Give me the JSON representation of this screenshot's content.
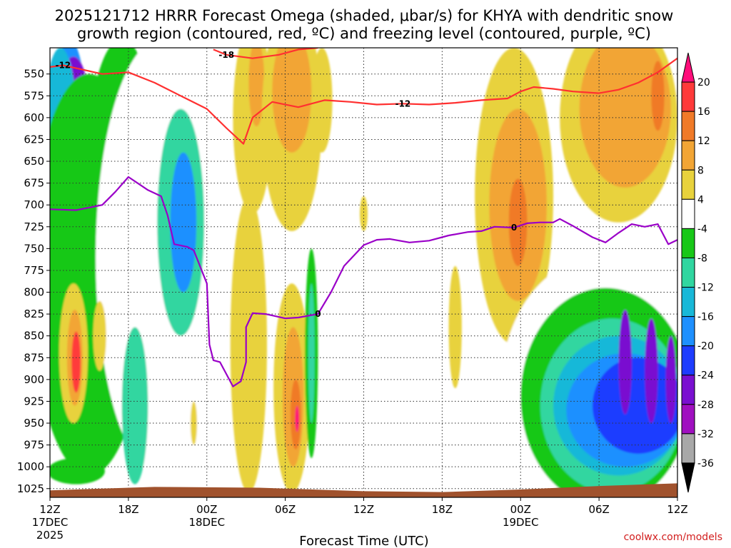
{
  "title_line1": "2025121712 HRRR Forecast Omega (shaded, μbar/s) for KHYA with dendritic snow",
  "title_line2": "growth region (contoured, red, ºC) and freezing level (contoured, purple, ºC)",
  "watermark": "coolwx.com/models",
  "chart_data": {
    "type": "heatmap",
    "title": "2025121712 HRRR Forecast Omega (shaded, μbar/s) for KHYA with dendritic snow growth region (contoured, red, ºC) and freezing level (contoured, purple, ºC)",
    "xlabel": "Forecast Time (UTC)",
    "ylabel": "",
    "x_range_hours": [
      0,
      48
    ],
    "y_range_hpa": [
      1035,
      520
    ],
    "y_ticks": [
      550,
      575,
      600,
      625,
      650,
      675,
      700,
      725,
      750,
      775,
      800,
      825,
      850,
      875,
      900,
      925,
      950,
      975,
      1000,
      1025
    ],
    "x_ticks": [
      {
        "hour": 0,
        "label": "12Z",
        "sub1": "17DEC",
        "sub2": "2025"
      },
      {
        "hour": 6,
        "label": "18Z",
        "sub1": "",
        "sub2": ""
      },
      {
        "hour": 12,
        "label": "00Z",
        "sub1": "18DEC",
        "sub2": ""
      },
      {
        "hour": 18,
        "label": "06Z",
        "sub1": "",
        "sub2": ""
      },
      {
        "hour": 24,
        "label": "12Z",
        "sub1": "",
        "sub2": ""
      },
      {
        "hour": 30,
        "label": "18Z",
        "sub1": "",
        "sub2": ""
      },
      {
        "hour": 36,
        "label": "00Z",
        "sub1": "19DEC",
        "sub2": ""
      },
      {
        "hour": 42,
        "label": "06Z",
        "sub1": "",
        "sub2": ""
      },
      {
        "hour": 48,
        "label": "12Z",
        "sub1": "",
        "sub2": ""
      }
    ],
    "colorbar": {
      "labels": [
        20,
        16,
        12,
        8,
        4,
        -4,
        -8,
        -12,
        -16,
        -20,
        -24,
        -28,
        -32,
        -36
      ],
      "colors": [
        "#ff0d7a",
        "#ff3a3a",
        "#f07a28",
        "#f2a535",
        "#e8d23c",
        "#ffffff",
        "#18c818",
        "#30d6a0",
        "#18b8d8",
        "#1e90ff",
        "#1e3cff",
        "#7a10d0",
        "#a010c0",
        "#a8a8a8",
        "#000000"
      ]
    },
    "omega_blobs": [
      {
        "cx": 1.5,
        "cp": 630,
        "rx": 1.4,
        "rp": 120,
        "value": -20
      },
      {
        "cx": 1.8,
        "cp": 590,
        "rx": 1.2,
        "rp": 60,
        "value": -28
      },
      {
        "cx": 0.8,
        "cp": 600,
        "rx": 1.2,
        "rp": 80,
        "value": -16
      },
      {
        "cx": 3.0,
        "cp": 780,
        "rx": 4.5,
        "rp": 230,
        "value": -8
      },
      {
        "cx": 5.5,
        "cp": 640,
        "rx": 2.5,
        "rp": 130,
        "value": -8
      },
      {
        "cx": 8.5,
        "cp": 760,
        "rx": 5.0,
        "rp": 250,
        "value": -4
      },
      {
        "cx": 10.0,
        "cp": 720,
        "rx": 1.8,
        "rp": 130,
        "value": -12
      },
      {
        "cx": 10.2,
        "cp": 720,
        "rx": 1.0,
        "rp": 80,
        "value": -20
      },
      {
        "cx": 6.5,
        "cp": 930,
        "rx": 1.0,
        "rp": 90,
        "value": -12
      },
      {
        "cx": 2.0,
        "cp": 1005,
        "rx": 2.2,
        "rp": 15,
        "value": -8
      },
      {
        "cx": 1.8,
        "cp": 870,
        "rx": 1.1,
        "rp": 80,
        "value": 4
      },
      {
        "cx": 1.9,
        "cp": 875,
        "rx": 0.6,
        "rp": 55,
        "value": 8
      },
      {
        "cx": 2.0,
        "cp": 880,
        "rx": 0.35,
        "rp": 35,
        "value": 16
      },
      {
        "cx": 3.8,
        "cp": 850,
        "rx": 0.5,
        "rp": 40,
        "value": 4
      },
      {
        "cx": 11.0,
        "cp": 950,
        "rx": 0.25,
        "rp": 25,
        "value": 4
      },
      {
        "cx": 15.5,
        "cp": 600,
        "rx": 1.5,
        "rp": 110,
        "value": 4
      },
      {
        "cx": 15.8,
        "cp": 560,
        "rx": 0.6,
        "rp": 50,
        "value": 8
      },
      {
        "cx": 15.2,
        "cp": 860,
        "rx": 1.4,
        "rp": 170,
        "value": 4
      },
      {
        "cx": 18.5,
        "cp": 600,
        "rx": 2.3,
        "rp": 130,
        "value": 4
      },
      {
        "cx": 18.5,
        "cp": 570,
        "rx": 1.5,
        "rp": 70,
        "value": 8
      },
      {
        "cx": 18.5,
        "cp": 910,
        "rx": 1.4,
        "rp": 120,
        "value": 4
      },
      {
        "cx": 18.6,
        "cp": 920,
        "rx": 0.8,
        "rp": 80,
        "value": 8
      },
      {
        "cx": 18.8,
        "cp": 940,
        "rx": 0.4,
        "rp": 40,
        "value": 12
      },
      {
        "cx": 18.9,
        "cp": 945,
        "rx": 0.15,
        "rp": 15,
        "value": 20
      },
      {
        "cx": 20.0,
        "cp": 870,
        "rx": 0.5,
        "rp": 120,
        "value": -8
      },
      {
        "cx": 20.0,
        "cp": 870,
        "rx": 0.25,
        "rp": 80,
        "value": -12
      },
      {
        "cx": 20.8,
        "cp": 580,
        "rx": 0.8,
        "rp": 60,
        "value": 4
      },
      {
        "cx": 24.0,
        "cp": 710,
        "rx": 0.3,
        "rp": 20,
        "value": 4
      },
      {
        "cx": 31.0,
        "cp": 840,
        "rx": 0.5,
        "rp": 70,
        "value": 4
      },
      {
        "cx": 35.5,
        "cp": 690,
        "rx": 3.0,
        "rp": 170,
        "value": 4
      },
      {
        "cx": 35.8,
        "cp": 700,
        "rx": 2.2,
        "rp": 110,
        "value": 8
      },
      {
        "cx": 35.8,
        "cp": 720,
        "rx": 0.7,
        "rp": 50,
        "value": 12
      },
      {
        "cx": 43.5,
        "cp": 600,
        "rx": 4.5,
        "rp": 120,
        "value": 4
      },
      {
        "cx": 44.0,
        "cp": 590,
        "rx": 3.5,
        "rp": 90,
        "value": 8
      },
      {
        "cx": 46.5,
        "cp": 575,
        "rx": 0.5,
        "rp": 40,
        "value": 12
      },
      {
        "cx": 42.0,
        "cp": 910,
        "rx": 7.5,
        "rp": 150,
        "value": -4
      },
      {
        "cx": 42.5,
        "cp": 920,
        "rx": 6.5,
        "rp": 125,
        "value": -8
      },
      {
        "cx": 43.0,
        "cp": 930,
        "rx": 5.5,
        "rp": 100,
        "value": -12
      },
      {
        "cx": 43.5,
        "cp": 930,
        "rx": 5.0,
        "rp": 80,
        "value": -16
      },
      {
        "cx": 44.0,
        "cp": 935,
        "rx": 4.5,
        "rp": 65,
        "value": -20
      },
      {
        "cx": 45.0,
        "cp": 930,
        "rx": 3.5,
        "rp": 55,
        "value": -24
      },
      {
        "cx": 44.0,
        "cp": 880,
        "rx": 0.5,
        "rp": 60,
        "value": -28
      },
      {
        "cx": 46.0,
        "cp": 890,
        "rx": 0.5,
        "rp": 60,
        "value": -28
      },
      {
        "cx": 47.5,
        "cp": 900,
        "rx": 0.4,
        "rp": 50,
        "value": -28
      }
    ],
    "dgz_contour_minus12_upper": {
      "label": "-12",
      "points": [
        [
          0,
          542
        ],
        [
          1.0,
          540
        ],
        [
          2.5,
          545
        ],
        [
          4.0,
          550
        ],
        [
          6.0,
          548
        ],
        [
          8.0,
          560
        ],
        [
          10.0,
          575
        ],
        [
          12.0,
          590
        ],
        [
          13.5,
          612
        ],
        [
          14.8,
          630
        ],
        [
          15.5,
          600
        ],
        [
          17.0,
          582
        ],
        [
          19.0,
          588
        ],
        [
          21.0,
          580
        ],
        [
          23.0,
          582
        ],
        [
          25.0,
          585
        ],
        [
          27.0,
          584
        ],
        [
          29.0,
          585
        ],
        [
          31.0,
          583
        ],
        [
          33.0,
          580
        ],
        [
          35.0,
          578
        ],
        [
          36.0,
          570
        ],
        [
          37.0,
          565
        ],
        [
          38.5,
          567
        ],
        [
          40.0,
          570
        ],
        [
          42.0,
          572
        ],
        [
          43.5,
          568
        ],
        [
          45.0,
          560
        ],
        [
          46.5,
          548
        ],
        [
          48.0,
          532
        ]
      ]
    },
    "dgz_contour_minus18": {
      "label": "-18",
      "points": [
        [
          12.5,
          522
        ],
        [
          13.5,
          528
        ],
        [
          15.5,
          532
        ],
        [
          17.5,
          528
        ],
        [
          19.0,
          522
        ],
        [
          20.5,
          520
        ]
      ]
    },
    "freezing_level": {
      "label": "0",
      "points": [
        [
          0,
          705
        ],
        [
          2.0,
          706
        ],
        [
          4.0,
          700
        ],
        [
          5.0,
          685
        ],
        [
          6.0,
          668
        ],
        [
          7.5,
          683
        ],
        [
          8.5,
          690
        ],
        [
          9.0,
          712
        ],
        [
          9.5,
          745
        ],
        [
          10.5,
          748
        ],
        [
          11.0,
          752
        ],
        [
          12.0,
          790
        ],
        [
          12.2,
          860
        ],
        [
          12.5,
          878
        ],
        [
          13.0,
          880
        ],
        [
          14.0,
          908
        ],
        [
          14.6,
          902
        ],
        [
          15.0,
          880
        ],
        [
          15.0,
          840
        ],
        [
          15.5,
          824
        ],
        [
          16.5,
          825
        ],
        [
          18.0,
          830
        ],
        [
          19.0,
          829
        ],
        [
          20.5,
          825
        ],
        [
          21.5,
          800
        ],
        [
          22.5,
          770
        ],
        [
          24.0,
          746
        ],
        [
          25.0,
          740
        ],
        [
          26.0,
          739
        ],
        [
          27.5,
          743
        ],
        [
          29.0,
          741
        ],
        [
          30.5,
          735
        ],
        [
          32.0,
          731
        ],
        [
          33.0,
          730
        ],
        [
          34.0,
          725
        ],
        [
          35.5,
          726
        ],
        [
          36.5,
          721
        ],
        [
          37.5,
          720
        ],
        [
          38.5,
          720
        ],
        [
          39.0,
          716
        ],
        [
          40.0,
          724
        ],
        [
          41.5,
          737
        ],
        [
          42.5,
          743
        ],
        [
          43.5,
          732
        ],
        [
          44.5,
          722
        ],
        [
          45.5,
          725
        ],
        [
          46.5,
          722
        ],
        [
          47.3,
          745
        ],
        [
          48.0,
          740
        ]
      ]
    }
  }
}
